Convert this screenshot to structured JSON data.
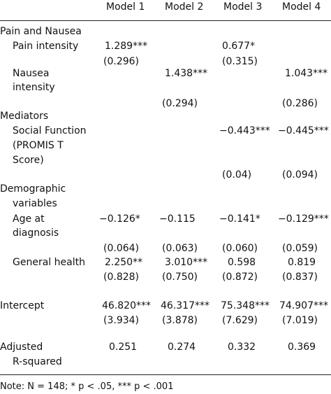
{
  "header": {
    "columns": [
      "Model 1",
      "Model 2",
      "Model 3",
      "Model 4"
    ]
  },
  "sections": [
    {
      "title": [
        "Pain and Nausea"
      ],
      "rows": [
        {
          "label": [
            "Pain intensity"
          ],
          "estimates": [
            "1.289***",
            null,
            "0.677*",
            null
          ],
          "se": [
            "(0.296)",
            null,
            "(0.315)",
            null
          ]
        },
        {
          "label": [
            "Nausea",
            "intensity"
          ],
          "estimates": [
            null,
            "1.438***",
            null,
            "1.043***"
          ],
          "se": [
            null,
            "(0.294)",
            null,
            "(0.286)"
          ]
        }
      ]
    },
    {
      "title": [
        "Mediators"
      ],
      "rows": [
        {
          "label": [
            "Social Function",
            "(PROMIS T",
            "Score)"
          ],
          "estimates": [
            null,
            null,
            "−0.443***",
            "−0.445***"
          ],
          "se": [
            null,
            null,
            "(0.04)",
            "(0.094)"
          ]
        }
      ]
    },
    {
      "title": [
        "Demographic",
        "variables"
      ],
      "rows": [
        {
          "label": [
            "Age at",
            "diagnosis"
          ],
          "estimates": [
            "−0.126*",
            "−0.115",
            "−0.141*",
            "−0.129***"
          ],
          "se": [
            "(0.064)",
            "(0.063)",
            "(0.060)",
            "(0.059)"
          ]
        },
        {
          "label": [
            "General health"
          ],
          "estimates": [
            "2.250**",
            "3.010***",
            "0.598",
            "0.819"
          ],
          "se": [
            "(0.828)",
            "(0.750)",
            "(0.872)",
            "(0.837)"
          ]
        }
      ]
    }
  ],
  "intercept": {
    "label": "Intercept",
    "estimates": [
      "46.820***",
      "46.317***",
      "75.348***",
      "74.907***"
    ],
    "se": [
      "(3.934)",
      "(3.878)",
      "(7.629)",
      "(7.019)"
    ]
  },
  "adjusted_r_squared": {
    "label": [
      "Adjusted",
      "R-squared"
    ],
    "values": [
      "0.251",
      "0.274",
      "0.332",
      "0.369"
    ]
  },
  "note": "Note: N = 148; * p < .05, *** p < .001"
}
